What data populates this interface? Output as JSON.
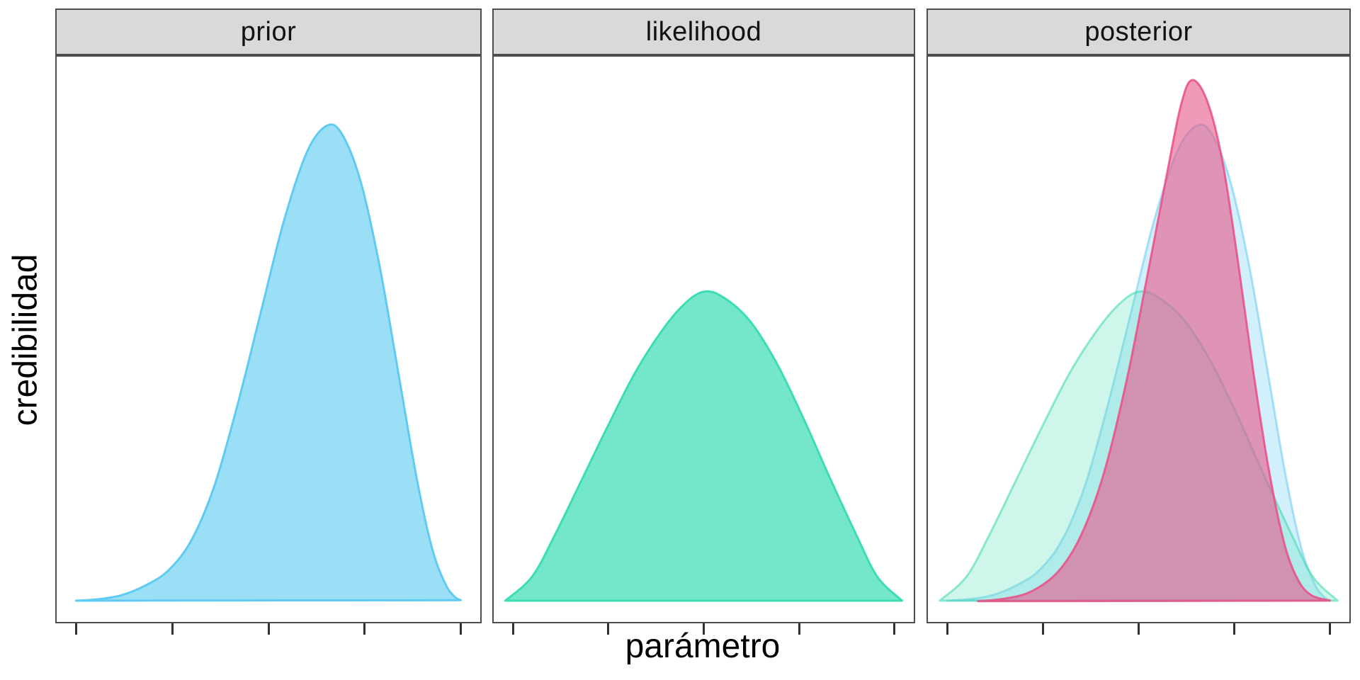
{
  "axes": {
    "x_label": "parámetro",
    "y_label": "credibilidad"
  },
  "style": {
    "strip_background": "#D9D9D9",
    "strip_border": "#4D4D4D",
    "panel_border": "#4D4D4D",
    "tick_color": "#333333",
    "text_color": "#000000",
    "prior_fill": "#9BDFF7",
    "prior_stroke": "#5FCBF2",
    "likelihood_fill": "#74E6CA",
    "likelihood_stroke": "#3CDDB2",
    "posterior_fill": "rgba(231,91,140,0.62)",
    "posterior_stroke": "rgba(234,77,133,0.85)"
  },
  "chart_data": {
    "type": "area",
    "subtype": "faceted-density",
    "title": "",
    "xlabel": "parámetro",
    "ylabel": "credibilidad",
    "x_domain": [
      0,
      1
    ],
    "x_ticks": [
      0,
      0.25,
      0.5,
      0.75,
      1
    ],
    "x_tick_labels": [
      "",
      "",
      "",
      "",
      ""
    ],
    "y_tick_labels": [],
    "ylim": [
      0,
      1.05
    ],
    "grid": false,
    "legend": false,
    "facets": [
      {
        "label": "prior",
        "curves": [
          {
            "name": "prior",
            "fill": "#9BDFF7",
            "stroke": "#5FCBF2",
            "stroke_width": 3,
            "peak_x": 0.66,
            "peak_height": 0.915,
            "points": [
              [
                0.0,
                0.004
              ],
              [
                0.06,
                0.007
              ],
              [
                0.12,
                0.015
              ],
              [
                0.18,
                0.033
              ],
              [
                0.24,
                0.062
              ],
              [
                0.3,
                0.12
              ],
              [
                0.36,
                0.225
              ],
              [
                0.42,
                0.38
              ],
              [
                0.48,
                0.555
              ],
              [
                0.54,
                0.73
              ],
              [
                0.6,
                0.862
              ],
              [
                0.65,
                0.912
              ],
              [
                0.69,
                0.898
              ],
              [
                0.74,
                0.805
              ],
              [
                0.79,
                0.64
              ],
              [
                0.84,
                0.43
              ],
              [
                0.885,
                0.24
              ],
              [
                0.925,
                0.105
              ],
              [
                0.96,
                0.036
              ],
              [
                0.985,
                0.011
              ],
              [
                1.0,
                0.005
              ]
            ]
          }
        ]
      },
      {
        "label": "likelihood",
        "curves": [
          {
            "name": "likelihood",
            "fill": "#74E6CA",
            "stroke": "#3CDDB2",
            "stroke_width": 3,
            "peak_x": 0.49,
            "peak_height": 0.6,
            "points": [
              [
                -0.02,
                0.004
              ],
              [
                0.05,
                0.05
              ],
              [
                0.11,
                0.13
              ],
              [
                0.18,
                0.235
              ],
              [
                0.25,
                0.34
              ],
              [
                0.32,
                0.44
              ],
              [
                0.39,
                0.52
              ],
              [
                0.45,
                0.572
              ],
              [
                0.5,
                0.595
              ],
              [
                0.55,
                0.585
              ],
              [
                0.62,
                0.54
              ],
              [
                0.69,
                0.46
              ],
              [
                0.76,
                0.355
              ],
              [
                0.83,
                0.24
              ],
              [
                0.9,
                0.13
              ],
              [
                0.955,
                0.05
              ],
              [
                1.02,
                0.004
              ]
            ]
          }
        ]
      },
      {
        "label": "posterior",
        "curves": [
          {
            "name": "prior-ghost",
            "fill": "rgba(125,208,245,0.35)",
            "stroke": "rgba(105,200,243,0.55)",
            "stroke_width": 3,
            "peak_x": 0.66,
            "peak_height": 0.915,
            "points": [
              [
                0.0,
                0.004
              ],
              [
                0.06,
                0.007
              ],
              [
                0.12,
                0.015
              ],
              [
                0.18,
                0.033
              ],
              [
                0.24,
                0.062
              ],
              [
                0.3,
                0.12
              ],
              [
                0.36,
                0.225
              ],
              [
                0.42,
                0.38
              ],
              [
                0.48,
                0.555
              ],
              [
                0.54,
                0.73
              ],
              [
                0.6,
                0.862
              ],
              [
                0.65,
                0.912
              ],
              [
                0.69,
                0.898
              ],
              [
                0.74,
                0.805
              ],
              [
                0.79,
                0.64
              ],
              [
                0.84,
                0.43
              ],
              [
                0.885,
                0.24
              ],
              [
                0.925,
                0.105
              ],
              [
                0.96,
                0.036
              ],
              [
                0.985,
                0.011
              ],
              [
                1.0,
                0.005
              ]
            ]
          },
          {
            "name": "likelihood-ghost",
            "fill": "rgba(95,225,188,0.30)",
            "stroke": "rgba(60,215,172,0.55)",
            "stroke_width": 3,
            "peak_x": 0.49,
            "peak_height": 0.6,
            "points": [
              [
                -0.02,
                0.004
              ],
              [
                0.05,
                0.05
              ],
              [
                0.11,
                0.13
              ],
              [
                0.18,
                0.235
              ],
              [
                0.25,
                0.34
              ],
              [
                0.32,
                0.44
              ],
              [
                0.39,
                0.52
              ],
              [
                0.45,
                0.572
              ],
              [
                0.5,
                0.595
              ],
              [
                0.55,
                0.585
              ],
              [
                0.62,
                0.54
              ],
              [
                0.69,
                0.46
              ],
              [
                0.76,
                0.355
              ],
              [
                0.83,
                0.24
              ],
              [
                0.9,
                0.13
              ],
              [
                0.955,
                0.05
              ],
              [
                1.02,
                0.004
              ]
            ]
          },
          {
            "name": "posterior",
            "fill": "rgba(231,91,140,0.62)",
            "stroke": "rgba(234,77,133,0.85)",
            "stroke_width": 3,
            "peak_x": 0.63,
            "peak_height": 1.0,
            "points": [
              [
                0.08,
                0.003
              ],
              [
                0.15,
                0.008
              ],
              [
                0.22,
                0.022
              ],
              [
                0.29,
                0.06
              ],
              [
                0.35,
                0.13
              ],
              [
                0.41,
                0.25
              ],
              [
                0.47,
                0.43
              ],
              [
                0.52,
                0.615
              ],
              [
                0.57,
                0.805
              ],
              [
                0.61,
                0.95
              ],
              [
                0.64,
                1.0
              ],
              [
                0.68,
                0.958
              ],
              [
                0.72,
                0.84
              ],
              [
                0.76,
                0.65
              ],
              [
                0.8,
                0.44
              ],
              [
                0.84,
                0.255
              ],
              [
                0.88,
                0.115
              ],
              [
                0.915,
                0.046
              ],
              [
                0.95,
                0.015
              ],
              [
                1.0,
                0.004
              ]
            ]
          }
        ]
      }
    ]
  }
}
